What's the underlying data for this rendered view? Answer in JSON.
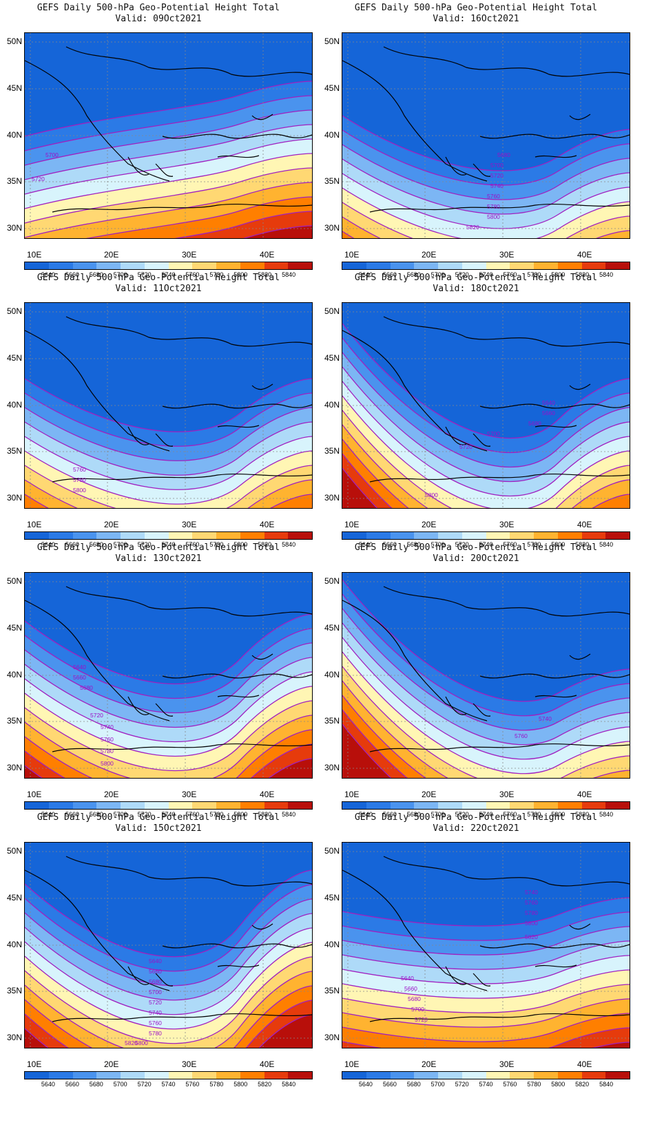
{
  "panels": [
    {
      "title": "GEFS Daily 500-hPa Geo-Potential Height Total",
      "valid": "Valid: 09Oct2021",
      "labels": [
        "5700",
        "5720"
      ]
    },
    {
      "title": "GEFS Daily 500-hPa Geo-Potential Height Total",
      "valid": "Valid: 16Oct2021",
      "labels": [
        "5680",
        "5700",
        "5720",
        "5740",
        "5760",
        "5780",
        "5800",
        "5820"
      ]
    },
    {
      "title": "GEFS Daily 500-hPa Geo-Potential Height Total",
      "valid": "Valid: 11Oct2021",
      "labels": [
        "5760",
        "5780",
        "5800"
      ]
    },
    {
      "title": "GEFS Daily 500-hPa Geo-Potential Height Total",
      "valid": "Valid: 18Oct2021",
      "labels": [
        "5640",
        "5660",
        "5680",
        "5700",
        "5720",
        "5800"
      ]
    },
    {
      "title": "GEFS Daily 500-hPa Geo-Potential Height Total",
      "valid": "Valid: 13Oct2021",
      "labels": [
        "5640",
        "5660",
        "5680",
        "5720",
        "5740",
        "5760",
        "5780",
        "5800"
      ]
    },
    {
      "title": "GEFS Daily 500-hPa Geo-Potential Height Total",
      "valid": "Valid: 20Oct2021",
      "labels": [
        "5740",
        "5760"
      ]
    },
    {
      "title": "GEFS Daily 500-hPa Geo-Potential Height Total",
      "valid": "Valid: 15Oct2021",
      "labels": [
        "5640",
        "5660",
        "5680",
        "5700",
        "5720",
        "5740",
        "5760",
        "5780",
        "5800",
        "5820"
      ]
    },
    {
      "title": "GEFS Daily 500-hPa Geo-Potential Height Total",
      "valid": "Valid: 22Oct2021",
      "labels": [
        "5640",
        "5660",
        "5680",
        "5700",
        "5720",
        "5740",
        "5760",
        "5780",
        "5800",
        "5820"
      ]
    }
  ],
  "axes": {
    "lat_labels": [
      "50N",
      "45N",
      "40N",
      "35N",
      "30N"
    ],
    "lon_labels": [
      "10E",
      "20E",
      "30E",
      "40E"
    ]
  },
  "colorbar": {
    "labels": [
      "5640",
      "5660",
      "5680",
      "5700",
      "5720",
      "5740",
      "5760",
      "5780",
      "5800",
      "5820",
      "5840"
    ],
    "colors": [
      "#1565d8",
      "#2b7ae6",
      "#4a93ee",
      "#7cb6f4",
      "#aedaf8",
      "#d8f4fc",
      "#fff6b4",
      "#ffd873",
      "#ffb330",
      "#ff7f00",
      "#e63b0c",
      "#b80f0a"
    ]
  }
}
